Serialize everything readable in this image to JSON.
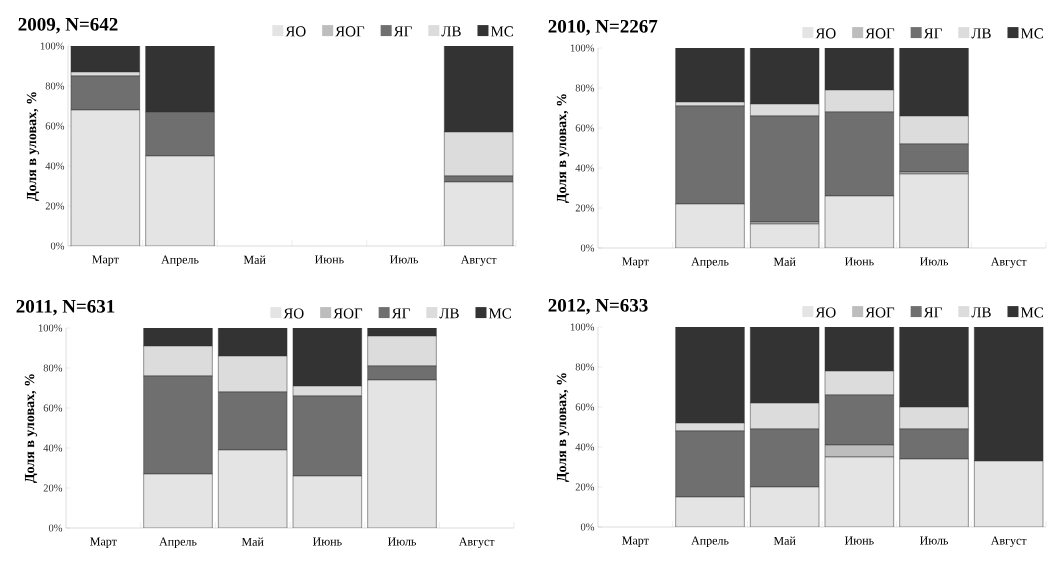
{
  "chart_data": [
    {
      "type": "bar",
      "stacked": true,
      "legend": "top",
      "title": "2009, N=642",
      "ylabel": "Доля в уловах, %",
      "categories": [
        "Март",
        "Апрель",
        "Май",
        "Июнь",
        "Июль",
        "Август"
      ],
      "ylim": [
        0,
        100
      ],
      "yticks": [
        {
          "value": 0,
          "label": "0%"
        },
        {
          "value": 20,
          "label": "20%"
        },
        {
          "value": 40,
          "label": "40%"
        },
        {
          "value": 60,
          "label": "60%"
        },
        {
          "value": 80,
          "label": "80%"
        },
        {
          "value": 100,
          "label": "100%"
        }
      ],
      "series": [
        {
          "name": "ЯО",
          "color": "#e4e4e4",
          "values": [
            68,
            45,
            null,
            null,
            null,
            32
          ]
        },
        {
          "name": "ЯОГ",
          "color": "#bdbdbd",
          "values": [
            0,
            0,
            null,
            null,
            null,
            0
          ]
        },
        {
          "name": "ЯГ",
          "color": "#6f6f6f",
          "values": [
            17,
            22,
            null,
            null,
            null,
            3
          ]
        },
        {
          "name": "ЛВ",
          "color": "#dcdcdc",
          "values": [
            2,
            0,
            null,
            null,
            null,
            22
          ]
        },
        {
          "name": "МС",
          "color": "#333333",
          "values": [
            13,
            33,
            null,
            null,
            null,
            43
          ]
        }
      ]
    },
    {
      "type": "bar",
      "stacked": true,
      "legend": "top",
      "title": "2010, N=2267",
      "ylabel": "Доля в уловах, %",
      "categories": [
        "Март",
        "Апрель",
        "Май",
        "Июнь",
        "Июль",
        "Август"
      ],
      "ylim": [
        0,
        100
      ],
      "yticks": [
        {
          "value": 0,
          "label": "0%"
        },
        {
          "value": 20,
          "label": "20%"
        },
        {
          "value": 40,
          "label": "40%"
        },
        {
          "value": 60,
          "label": "60%"
        },
        {
          "value": 80,
          "label": "80%"
        },
        {
          "value": 100,
          "label": "100%"
        }
      ],
      "series": [
        {
          "name": "ЯО",
          "color": "#e4e4e4",
          "values": [
            null,
            22,
            12,
            26,
            37,
            null
          ]
        },
        {
          "name": "ЯОГ",
          "color": "#bdbdbd",
          "values": [
            null,
            0,
            1,
            0,
            1,
            null
          ]
        },
        {
          "name": "ЯГ",
          "color": "#6f6f6f",
          "values": [
            null,
            49,
            53,
            42,
            14,
            null
          ]
        },
        {
          "name": "ЛВ",
          "color": "#dcdcdc",
          "values": [
            null,
            2,
            6,
            11,
            14,
            null
          ]
        },
        {
          "name": "МС",
          "color": "#333333",
          "values": [
            null,
            27,
            28,
            21,
            34,
            null
          ]
        }
      ]
    },
    {
      "type": "bar",
      "stacked": true,
      "legend": "top",
      "title": "2011, N=631",
      "ylabel": "Доля в уловах, %",
      "categories": [
        "Март",
        "Апрель",
        "Май",
        "Июнь",
        "Июль",
        "Август"
      ],
      "ylim": [
        0,
        100
      ],
      "yticks": [
        {
          "value": 0,
          "label": "0%"
        },
        {
          "value": 20,
          "label": "20%"
        },
        {
          "value": 40,
          "label": "40%"
        },
        {
          "value": 60,
          "label": "60%"
        },
        {
          "value": 80,
          "label": "80%"
        },
        {
          "value": 100,
          "label": "100%"
        }
      ],
      "series": [
        {
          "name": "ЯО",
          "color": "#e4e4e4",
          "values": [
            null,
            27,
            39,
            26,
            74,
            null
          ]
        },
        {
          "name": "ЯОГ",
          "color": "#bdbdbd",
          "values": [
            null,
            0,
            0,
            0,
            0,
            null
          ]
        },
        {
          "name": "ЯГ",
          "color": "#6f6f6f",
          "values": [
            null,
            49,
            29,
            40,
            7,
            null
          ]
        },
        {
          "name": "ЛВ",
          "color": "#dcdcdc",
          "values": [
            null,
            15,
            18,
            5,
            15,
            null
          ]
        },
        {
          "name": "МС",
          "color": "#333333",
          "values": [
            null,
            9,
            14,
            29,
            4,
            null
          ]
        }
      ]
    },
    {
      "type": "bar",
      "stacked": true,
      "legend": "top",
      "title": "2012, N=633",
      "ylabel": "Доля в уловах, %",
      "categories": [
        "Март",
        "Апрель",
        "Май",
        "Июнь",
        "Июль",
        "Август"
      ],
      "ylim": [
        0,
        100
      ],
      "yticks": [
        {
          "value": 0,
          "label": "0%"
        },
        {
          "value": 20,
          "label": "20%"
        },
        {
          "value": 40,
          "label": "40%"
        },
        {
          "value": 60,
          "label": "60%"
        },
        {
          "value": 80,
          "label": "80%"
        },
        {
          "value": 100,
          "label": "100%"
        }
      ],
      "series": [
        {
          "name": "ЯО",
          "color": "#e4e4e4",
          "values": [
            null,
            15,
            20,
            35,
            34,
            33
          ]
        },
        {
          "name": "ЯОГ",
          "color": "#bdbdbd",
          "values": [
            null,
            0,
            0,
            6,
            0,
            0
          ]
        },
        {
          "name": "ЯГ",
          "color": "#6f6f6f",
          "values": [
            null,
            33,
            29,
            25,
            15,
            0
          ]
        },
        {
          "name": "ЛВ",
          "color": "#dcdcdc",
          "values": [
            null,
            4,
            13,
            12,
            11,
            0
          ]
        },
        {
          "name": "МС",
          "color": "#333333",
          "values": [
            null,
            48,
            38,
            22,
            40,
            67
          ]
        }
      ]
    }
  ]
}
